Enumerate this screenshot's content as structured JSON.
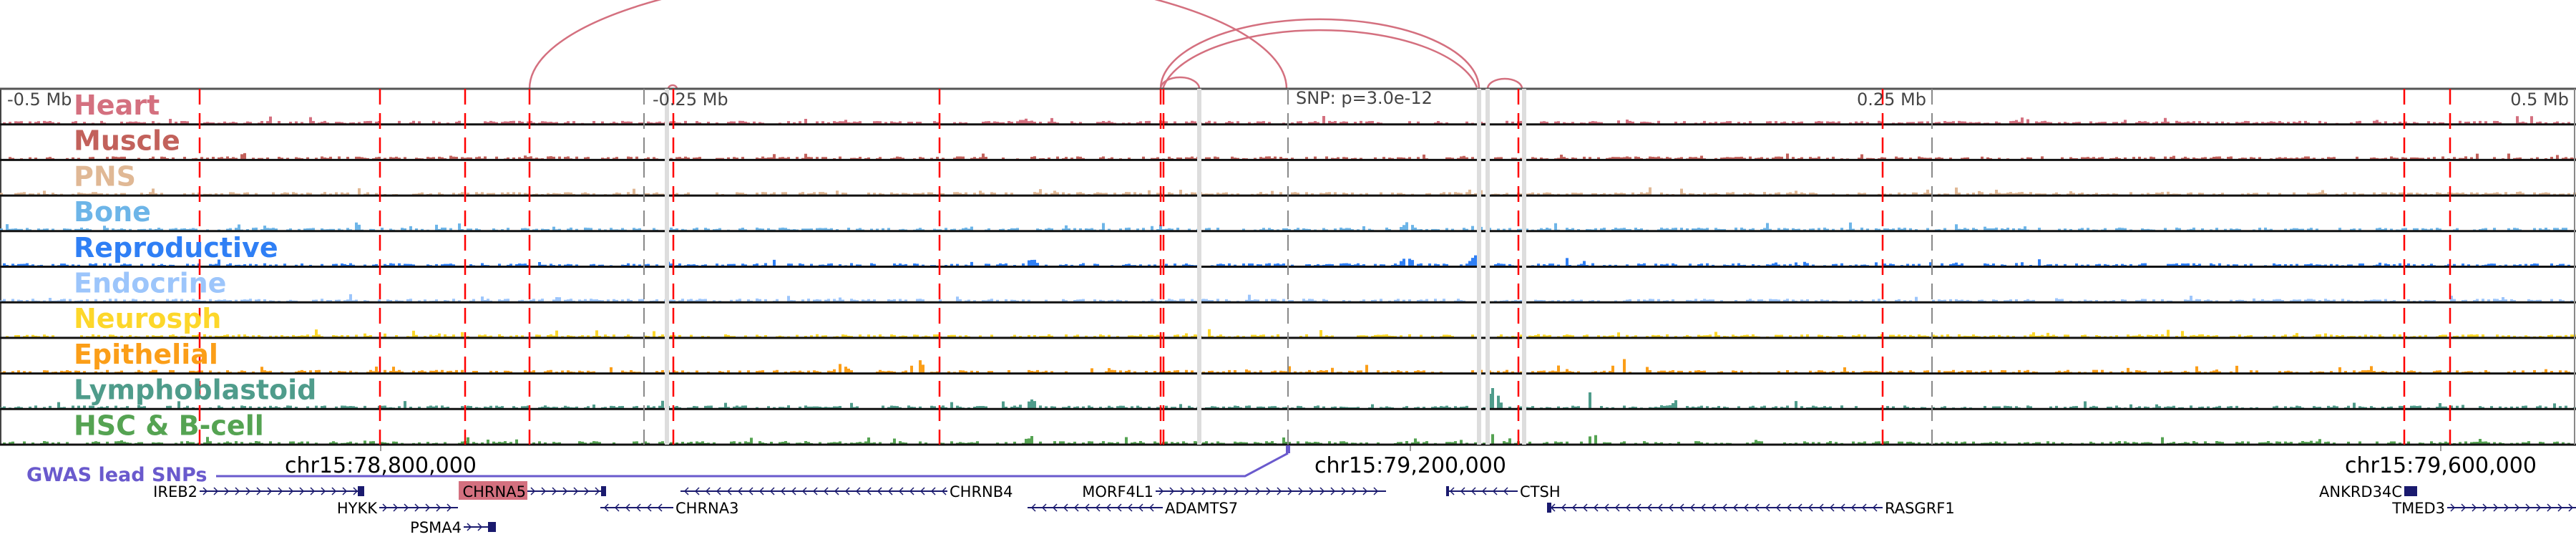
{
  "axis": {
    "mb_labels": [
      "-0.5 Mb",
      "-0.25 Mb",
      "0.25 Mb",
      "0.5 Mb"
    ],
    "snp_label": "SNP: p=3.0e-12",
    "coord_labels": [
      "chr15:78,800,000",
      "chr15:79,200,000",
      "chr15:79,600,000"
    ]
  },
  "tracks": [
    {
      "label": "Heart",
      "color": "#d4707f"
    },
    {
      "label": "Muscle",
      "color": "#c2615b"
    },
    {
      "label": "PNS",
      "color": "#e0b895"
    },
    {
      "label": "Bone",
      "color": "#6db5e8"
    },
    {
      "label": "Reproductive",
      "color": "#2f7ff5"
    },
    {
      "label": "Endocrine",
      "color": "#9cc5fb"
    },
    {
      "label": "Neurosph",
      "color": "#fdd72a"
    },
    {
      "label": "Epithelial",
      "color": "#fb9e18"
    },
    {
      "label": "Lymphoblastoid",
      "color": "#4f9c8b"
    },
    {
      "label": "HSC & B-cell",
      "color": "#55a352"
    }
  ],
  "gwas": {
    "label": "GWAS lead SNPs",
    "color": "#6a5acd"
  },
  "genes": {
    "IREB2": "IREB2",
    "CHRNA5": "CHRNA5",
    "HYKK": "HYKK",
    "PSMA4": "PSMA4",
    "CHRNA3": "CHRNA3",
    "CHRNB4": "CHRNB4",
    "MORF4L1": "MORF4L1",
    "ADAMTS7": "ADAMTS7",
    "CTSH": "CTSH",
    "RASGRF1": "RASGRF1",
    "ANKRD34C": "ANKRD34C",
    "TMED3": "TMED3"
  },
  "colors": {
    "highlight_gene": "#d4707f",
    "arc": "#d4707f",
    "gene": "#1a1a6e",
    "marker_line": "#ff0000"
  }
}
